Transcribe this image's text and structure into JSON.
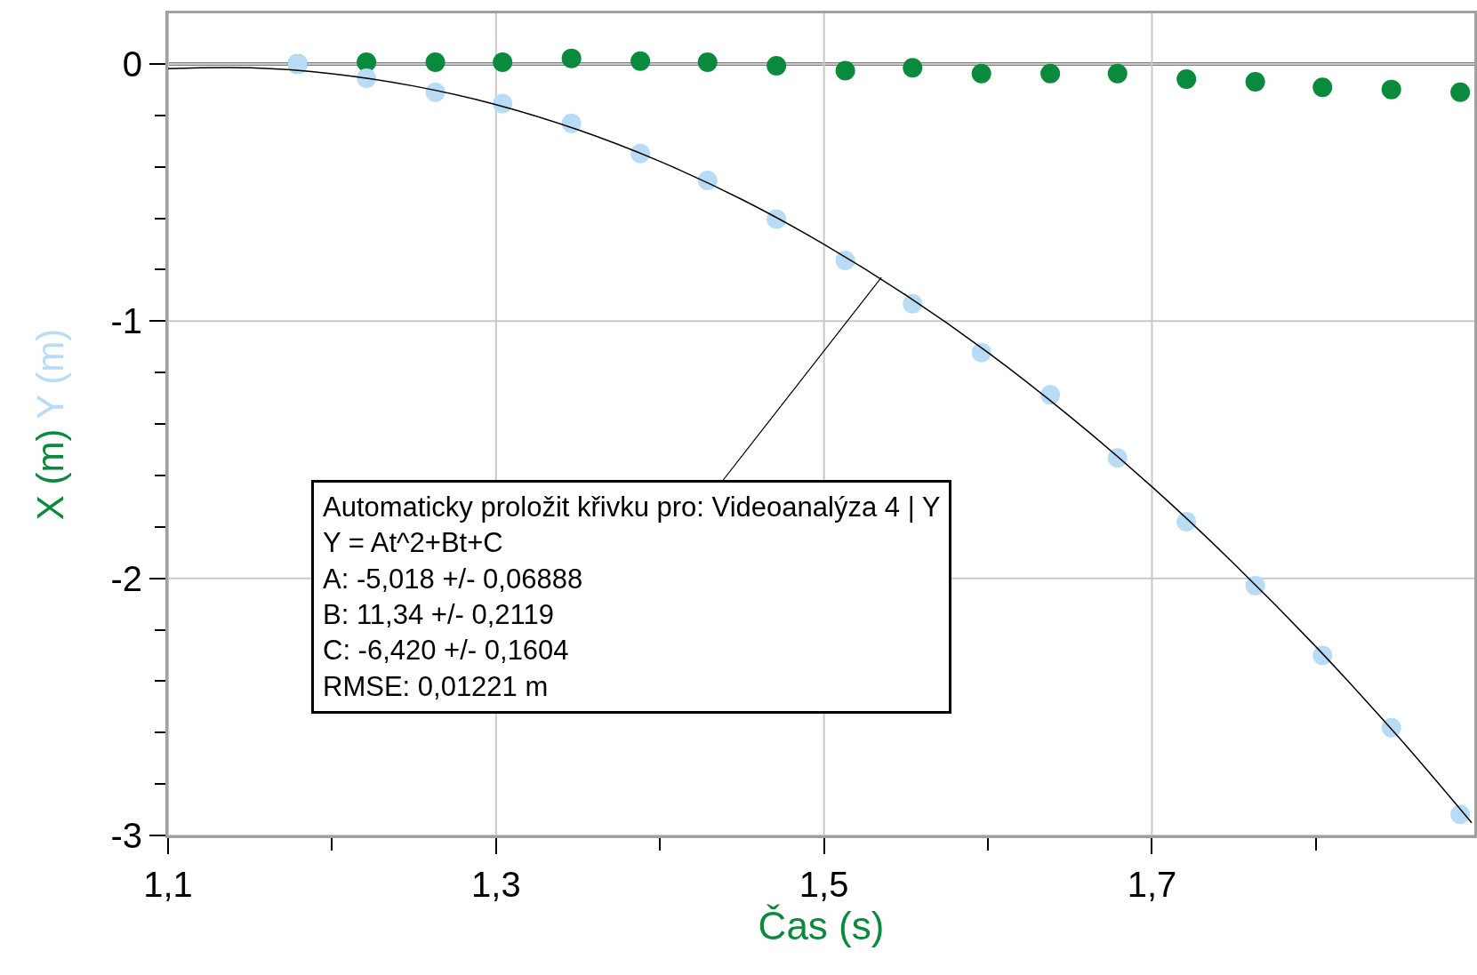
{
  "chart_data": {
    "type": "scatter",
    "xlabel": "Čas (s)",
    "ylabel": "X (m)   Y (m)",
    "xlim": [
      1.1,
      1.8966
    ],
    "ylim": [
      -3,
      0.197
    ],
    "xticks": [
      {
        "value": 1.1,
        "label": "1,1"
      },
      {
        "value": 1.2,
        "label": null
      },
      {
        "value": 1.3,
        "label": "1,3"
      },
      {
        "value": 1.4,
        "label": null
      },
      {
        "value": 1.5,
        "label": "1,5"
      },
      {
        "value": 1.6,
        "label": null
      },
      {
        "value": 1.7,
        "label": "1,7"
      },
      {
        "value": 1.8,
        "label": null
      }
    ],
    "yticks": [
      {
        "value": 0,
        "label": "0"
      },
      {
        "value": -0.2,
        "label": null
      },
      {
        "value": -0.4,
        "label": null
      },
      {
        "value": -0.6,
        "label": null
      },
      {
        "value": -0.8,
        "label": null
      },
      {
        "value": -1,
        "label": "-1"
      },
      {
        "value": -1.2,
        "label": null
      },
      {
        "value": -1.4,
        "label": null
      },
      {
        "value": -1.6,
        "label": null
      },
      {
        "value": -1.8,
        "label": null
      },
      {
        "value": -2,
        "label": "-2"
      },
      {
        "value": -2.2,
        "label": null
      },
      {
        "value": -2.4,
        "label": null
      },
      {
        "value": -2.6,
        "label": null
      },
      {
        "value": -2.8,
        "label": null
      },
      {
        "value": -3,
        "label": "-3"
      }
    ],
    "x": [
      1.179,
      1.221,
      1.263,
      1.304,
      1.346,
      1.388,
      1.429,
      1.471,
      1.513,
      1.554,
      1.596,
      1.638,
      1.679,
      1.721,
      1.763,
      1.804,
      1.846,
      1.888
    ],
    "marker": "circle",
    "series": [
      {
        "color": "#0a8a3c",
        "values": [
          0,
          0.007,
          0.007,
          0.007,
          0.022,
          0.011,
          0.007,
          -0.007,
          -0.026,
          -0.015,
          -0.037,
          -0.037,
          -0.037,
          -0.059,
          -0.069,
          -0.091,
          -0.099,
          -0.11
        ]
      },
      {
        "color": "#b8dcf5",
        "values": [
          0,
          -0.055,
          -0.11,
          -0.154,
          -0.231,
          -0.348,
          -0.453,
          -0.603,
          -0.764,
          -0.932,
          -1.122,
          -1.287,
          -1.532,
          -1.78,
          -2.029,
          -2.3,
          -2.581,
          -2.918
        ]
      },
      {
        "type": "line",
        "marker": "none",
        "color": "#000000",
        "x": [
          1.1,
          1.15,
          1.2,
          1.25,
          1.3,
          1.35,
          1.4,
          1.45,
          1.5,
          1.55,
          1.6,
          1.65,
          1.7,
          1.75,
          1.8,
          1.85,
          1.895
        ],
        "values": [
          -0.018,
          -0.015,
          -0.038,
          -0.086,
          -0.158,
          -0.256,
          -0.379,
          -0.527,
          -0.701,
          -0.899,
          -1.122,
          -1.371,
          -1.644,
          -1.943,
          -2.266,
          -2.615,
          -2.951
        ]
      }
    ],
    "ref_lines": [
      {
        "axis": "y",
        "value": 0,
        "color": "#808080"
      }
    ],
    "annotations": [
      {
        "text": "Automaticky proložit křivku pro: Videoanalýza 4 | Y\nY = At^2+Bt+C\nA: -5,018 +/- 0,06888\nB: 11,34 +/- 0,2119\nC: -6,420 +/- 0,1604\nRMSE: 0,01221 m",
        "x": 1.535,
        "y": -0.83
      }
    ],
    "grid": true
  }
}
